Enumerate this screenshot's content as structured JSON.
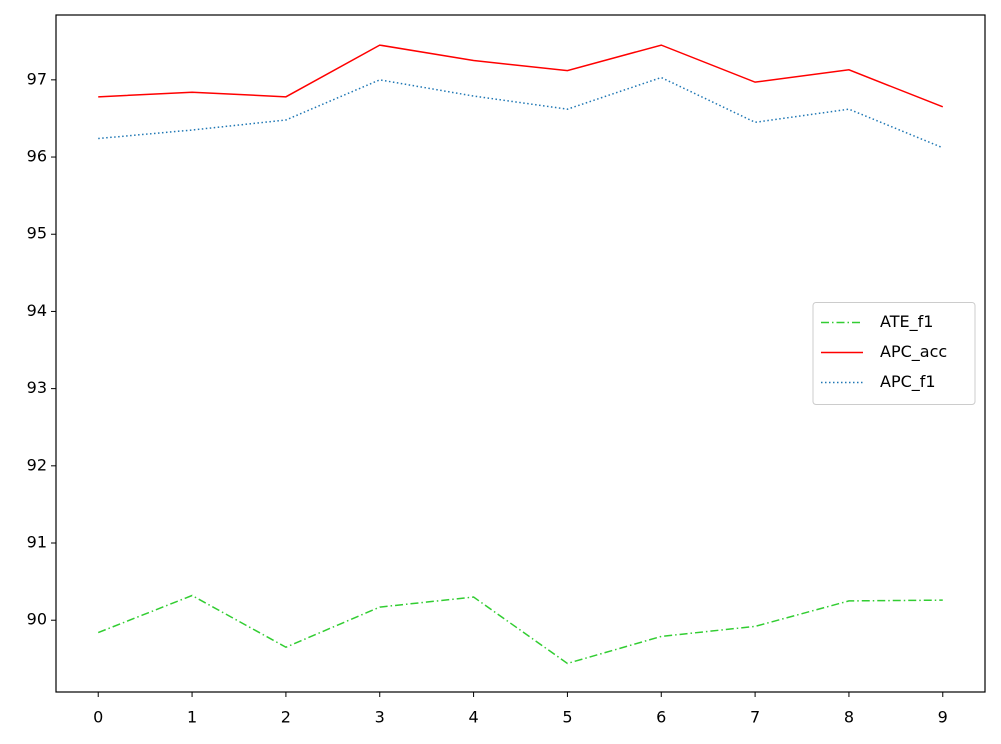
{
  "chart_data": {
    "type": "line",
    "x": [
      0,
      1,
      2,
      3,
      4,
      5,
      6,
      7,
      8,
      9
    ],
    "series": [
      {
        "name": "ATE_f1",
        "color": "#32cd32",
        "linestyle": "dashdot",
        "values": [
          89.84,
          90.32,
          89.65,
          90.17,
          90.3,
          89.44,
          89.79,
          89.92,
          90.25,
          90.26
        ]
      },
      {
        "name": "APC_acc",
        "color": "#ff0000",
        "linestyle": "solid",
        "values": [
          96.78,
          96.84,
          96.78,
          97.45,
          97.25,
          97.12,
          97.45,
          96.97,
          97.13,
          96.65
        ]
      },
      {
        "name": "APC_f1",
        "color": "#1f77b4",
        "linestyle": "dotted",
        "values": [
          96.24,
          96.35,
          96.48,
          97.0,
          96.79,
          96.62,
          97.03,
          96.45,
          96.62,
          96.12
        ]
      }
    ],
    "xlim": [
      -0.45,
      9.45
    ],
    "xticks": [
      0,
      1,
      2,
      3,
      4,
      5,
      6,
      7,
      8,
      9
    ],
    "ylim": [
      89.07,
      97.84
    ],
    "yticks": [
      90,
      91,
      92,
      93,
      94,
      95,
      96,
      97
    ],
    "legend": "center right",
    "grid": false
  }
}
